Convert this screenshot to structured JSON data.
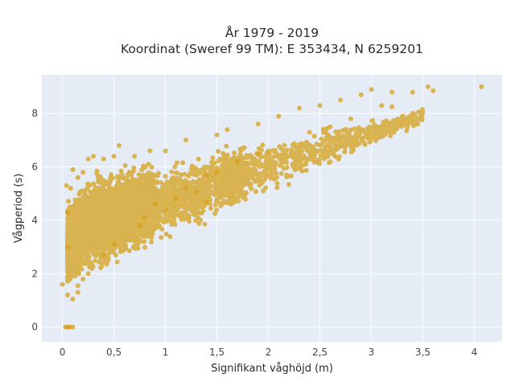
{
  "chart_data": {
    "type": "scatter",
    "title": [
      "År 1979 - 2019",
      "Koordinat (Sweref 99 TM): E 353434, N 6259201"
    ],
    "xlabel": "Signifikant våghöjd (m)",
    "ylabel": "Vågperiod (s)",
    "xlim": [
      -0.2,
      4.27
    ],
    "ylim": [
      -0.55,
      9.45
    ],
    "x_ticks": [
      {
        "value": 0,
        "label": "0"
      },
      {
        "value": 0.5,
        "label": "0,5"
      },
      {
        "value": 1,
        "label": "1"
      },
      {
        "value": 1.5,
        "label": "1,5"
      },
      {
        "value": 2,
        "label": "2"
      },
      {
        "value": 2.5,
        "label": "2,5"
      },
      {
        "value": 3,
        "label": "3"
      },
      {
        "value": 3.5,
        "label": "3,5"
      },
      {
        "value": 4,
        "label": "4"
      }
    ],
    "y_ticks": [
      {
        "value": 0,
        "label": "0"
      },
      {
        "value": 2,
        "label": "2"
      },
      {
        "value": 4,
        "label": "4"
      },
      {
        "value": 6,
        "label": "6"
      },
      {
        "value": 8,
        "label": "8"
      }
    ],
    "grid": true,
    "marker_color": "#d4a018",
    "plot_bg": "#e5ecf6",
    "series": [
      {
        "points": [
          [
            0.03,
            0.0
          ],
          [
            0.05,
            0.0
          ],
          [
            0.07,
            0.0
          ],
          [
            0.1,
            0.0
          ],
          [
            0.0,
            1.6
          ],
          [
            0.05,
            1.2
          ],
          [
            0.1,
            1.05
          ],
          [
            0.15,
            1.3
          ],
          [
            0.05,
            3.0
          ],
          [
            0.05,
            4.3
          ],
          [
            0.04,
            5.3
          ],
          [
            0.08,
            5.2
          ],
          [
            0.1,
            5.9
          ],
          [
            0.15,
            5.6
          ],
          [
            0.2,
            5.8
          ],
          [
            0.25,
            6.3
          ],
          [
            0.3,
            6.4
          ],
          [
            0.4,
            6.3
          ],
          [
            0.5,
            6.4
          ],
          [
            0.55,
            6.8
          ],
          [
            0.7,
            6.4
          ],
          [
            0.85,
            6.6
          ],
          [
            1.0,
            6.6
          ],
          [
            1.2,
            7.0
          ],
          [
            1.5,
            7.2
          ],
          [
            1.6,
            7.4
          ],
          [
            1.9,
            7.6
          ],
          [
            2.1,
            7.9
          ],
          [
            2.3,
            8.2
          ],
          [
            2.5,
            8.3
          ],
          [
            2.7,
            8.5
          ],
          [
            2.9,
            8.7
          ],
          [
            3.0,
            8.9
          ],
          [
            3.2,
            8.8
          ],
          [
            3.4,
            8.8
          ],
          [
            3.55,
            9.0
          ],
          [
            3.6,
            8.85
          ],
          [
            4.07,
            9.0
          ],
          [
            3.2,
            8.25
          ],
          [
            3.1,
            8.3
          ],
          [
            2.8,
            7.8
          ],
          [
            2.4,
            7.3
          ],
          [
            2.0,
            6.6
          ],
          [
            1.7,
            6.2
          ],
          [
            1.5,
            5.8
          ],
          [
            1.4,
            5.7
          ],
          [
            1.2,
            5.2
          ],
          [
            1.1,
            4.8
          ],
          [
            1.0,
            4.4
          ],
          [
            0.9,
            4.6
          ],
          [
            0.8,
            4.1
          ],
          [
            0.75,
            3.8
          ],
          [
            0.5,
            3.1
          ],
          [
            0.4,
            2.7
          ],
          [
            0.25,
            2.0
          ],
          [
            0.2,
            1.8
          ],
          [
            0.15,
            1.55
          ],
          [
            1.3,
            5.05
          ],
          [
            1.4,
            4.7
          ],
          [
            1.9,
            6.5
          ],
          [
            2.6,
            7.5
          ]
        ]
      }
    ]
  }
}
